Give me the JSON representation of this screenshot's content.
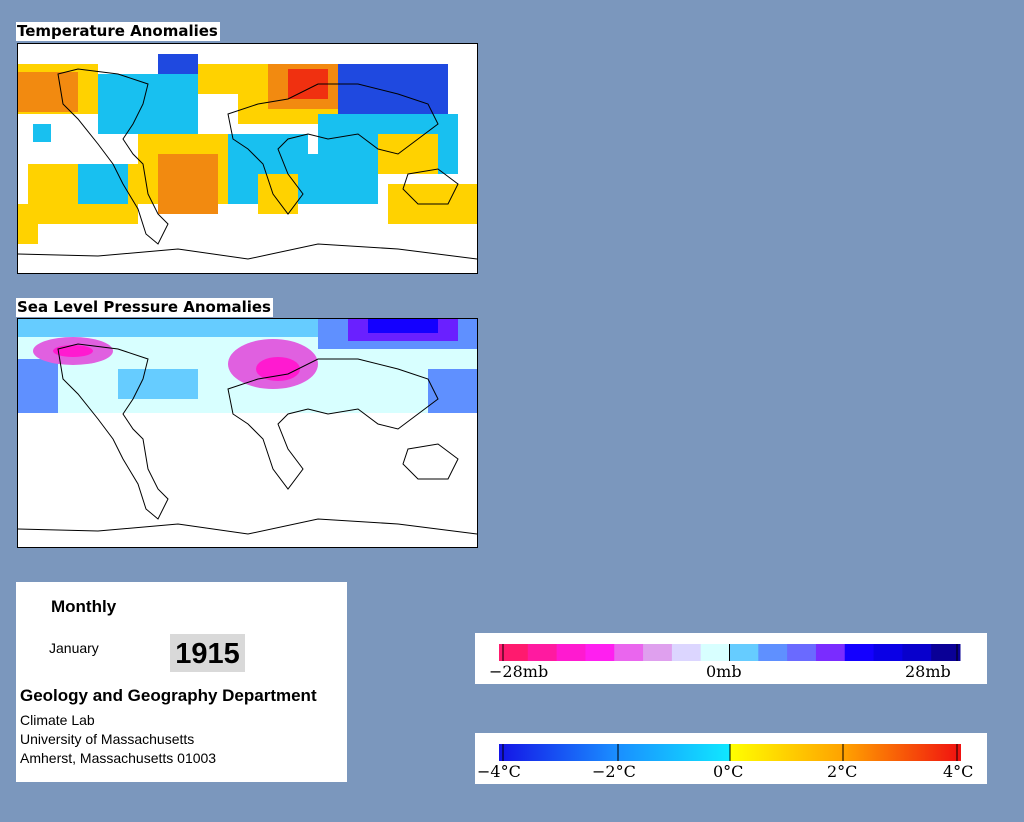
{
  "panels": {
    "temperature": {
      "title": "Temperature Anomalies"
    },
    "pressure": {
      "title": "Sea Level Pressure Anomalies"
    }
  },
  "info": {
    "heading": "Monthly",
    "month": "January",
    "year": "1915",
    "department": "Geology and Geography Department",
    "lab": "Climate Lab",
    "university": "University of Massachusetts",
    "address": "Amherst, Massachusetts 01003"
  },
  "legends": {
    "pressure": {
      "labels": [
        "−28mb",
        "0mb",
        "28mb"
      ],
      "colors": [
        "#ff1a6e",
        "#ff1aa0",
        "#ff1ad0",
        "#ff1ff0",
        "#ea66ee",
        "#dfa0ee",
        "#dcd6ff",
        "#d8ffff",
        "#66ccff",
        "#5f90ff",
        "#6a6aff",
        "#7a2cff",
        "#1400ff",
        "#0a00e6",
        "#0800cc",
        "#0a0096"
      ]
    },
    "temperature": {
      "labels": [
        "−4°C",
        "−2°C",
        "0°C",
        "2°C",
        "4°C"
      ]
    }
  },
  "map_legend_colors": {
    "temp_cold": "#1f49e0",
    "temp_cool": "#18c0f0",
    "temp_warm": "#ffd200",
    "temp_hot": "#f03010",
    "slp_high": "#6a20ff",
    "slp_low": "#e060e0"
  }
}
